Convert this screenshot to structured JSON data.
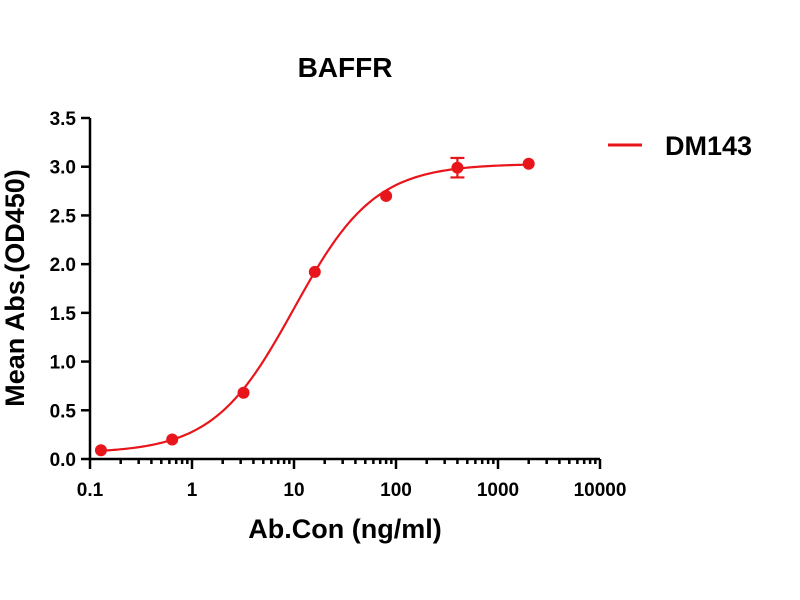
{
  "chart_data": {
    "type": "scatter",
    "title": "BAFFR",
    "xlabel": "Ab.Con (ng/ml)",
    "ylabel": "Mean Abs.(OD450)",
    "x_scale": "log",
    "xlim": [
      0.1,
      10000
    ],
    "ylim": [
      0,
      3.5
    ],
    "x_ticks": [
      0.1,
      1,
      10,
      100,
      1000,
      10000
    ],
    "x_tick_labels": [
      "0.1",
      "1",
      "10",
      "100",
      "1000",
      "10000"
    ],
    "y_ticks": [
      0,
      0.5,
      1,
      1.5,
      2,
      2.5,
      3,
      3.5
    ],
    "y_tick_labels": [
      "0.0",
      "0.5",
      "1.0",
      "1.5",
      "2.0",
      "2.5",
      "3.0",
      "3.5"
    ],
    "grid": false,
    "legend_position": "top-right",
    "series": [
      {
        "name": "DM143",
        "color": "#e8161b",
        "x": [
          0.128,
          0.64,
          3.2,
          16,
          80,
          400,
          2000
        ],
        "y": [
          0.09,
          0.2,
          0.68,
          1.92,
          2.7,
          2.99,
          3.03
        ],
        "error": [
          0,
          0,
          0,
          0,
          0,
          0.1,
          0
        ],
        "fit": "4PL sigmoid"
      }
    ]
  }
}
